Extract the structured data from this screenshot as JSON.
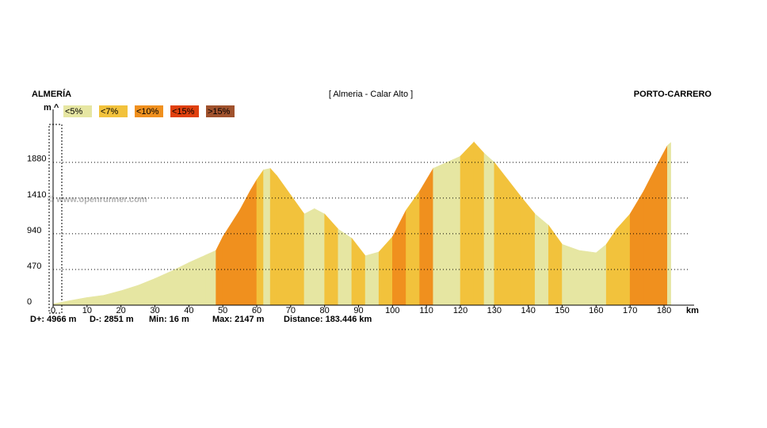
{
  "chart_data": {
    "type": "elevation",
    "start_label": "ALMERÍA",
    "title": "[ Almeria - Calar Alto ]",
    "end_label": "PORTO-CARRERO",
    "y_unit": "m ^",
    "x_unit": "km",
    "watermark": "© www.openrunner.com",
    "legend": [
      {
        "label": "<5%",
        "color": "#e6e6a2"
      },
      {
        "label": "<7%",
        "color": "#f2c23c"
      },
      {
        "label": "<10%",
        "color": "#f0901e"
      },
      {
        "label": "<15%",
        "color": "#e0400e"
      },
      {
        "label": ">15%",
        "color": "#a0522d"
      }
    ],
    "x": [
      0,
      5,
      10,
      15,
      20,
      25,
      30,
      35,
      40,
      45,
      48,
      50,
      55,
      58,
      60,
      62,
      64,
      66,
      70,
      74,
      77,
      80,
      84,
      88,
      92,
      96,
      100,
      104,
      108,
      112,
      116,
      120,
      124,
      127,
      130,
      134,
      138,
      142,
      146,
      150,
      155,
      160,
      163,
      166,
      170,
      174,
      178,
      181,
      182
    ],
    "elevation": [
      16,
      60,
      100,
      130,
      190,
      260,
      350,
      450,
      560,
      660,
      720,
      900,
      1250,
      1500,
      1650,
      1780,
      1800,
      1700,
      1450,
      1200,
      1270,
      1200,
      1000,
      880,
      650,
      700,
      900,
      1250,
      1500,
      1800,
      1880,
      1960,
      2147,
      2000,
      1880,
      1650,
      1420,
      1200,
      1050,
      800,
      720,
      690,
      800,
      1000,
      1200,
      1500,
      1850,
      2100,
      2140
    ],
    "grade_class": [
      0,
      0,
      0,
      0,
      0,
      0,
      0,
      0,
      0,
      0,
      2,
      2,
      2,
      2,
      1,
      0,
      1,
      1,
      1,
      0,
      0,
      1,
      0,
      1,
      0,
      1,
      2,
      1,
      2,
      0,
      0,
      1,
      1,
      0,
      1,
      1,
      1,
      0,
      1,
      0,
      0,
      0,
      1,
      1,
      2,
      2,
      2,
      0
    ],
    "xlim": [
      0,
      187
    ],
    "ylim": [
      0,
      2400
    ],
    "xticks": [
      0,
      10,
      20,
      30,
      40,
      50,
      60,
      70,
      80,
      90,
      100,
      110,
      120,
      130,
      140,
      150,
      160,
      170,
      180
    ],
    "yticks": [
      0,
      470,
      940,
      1410,
      1880
    ],
    "grid": true,
    "stats": [
      "D+: 4966 m",
      "D-: 2851 m",
      "Min: 16 m",
      "Max: 2147 m",
      "Distance: 183.446 km"
    ]
  }
}
